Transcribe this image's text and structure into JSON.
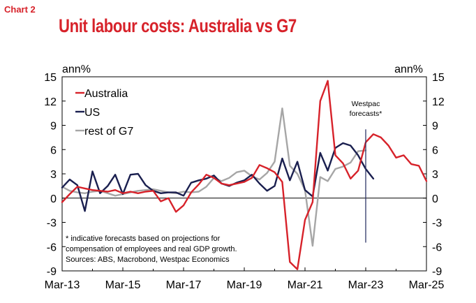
{
  "header": {
    "label": "Chart 2",
    "title": "Unit labour costs: Australia vs G7"
  },
  "colors": {
    "australia": "#d7222a",
    "us": "#1a1f4f",
    "rest_g7": "#a6a6a6",
    "forecast_line": "#2e3568"
  },
  "chart_data": {
    "type": "line",
    "title": "Unit labour costs: Australia vs G7",
    "ylabel_left": "ann%",
    "ylabel_right": "ann%",
    "ylim": [
      -9,
      15
    ],
    "yticks": [
      -9,
      -6,
      -3,
      0,
      3,
      6,
      9,
      12,
      15
    ],
    "xlim": [
      2013.0,
      2025.0
    ],
    "xticks": [
      {
        "label": "Mar-13",
        "x": 2013.0
      },
      {
        "label": "Mar-15",
        "x": 2015.0
      },
      {
        "label": "Mar-17",
        "x": 2017.0
      },
      {
        "label": "Mar-19",
        "x": 2019.0
      },
      {
        "label": "Mar-21",
        "x": 2021.0
      },
      {
        "label": "Mar-23",
        "x": 2023.0
      },
      {
        "label": "Mar-25",
        "x": 2025.0
      }
    ],
    "forecast_marker": {
      "x": 2023.0,
      "label_line1": "Westpac",
      "label_line2": "forecasts*",
      "y_from": -5.5,
      "y_to": 8.5
    },
    "legend": [
      "Australia",
      "US",
      "rest of G7"
    ],
    "footnote": [
      "* indicative forecasts based on projections for",
      "compensation of employees and real GDP growth.",
      "Sources: ABS, Macrobond, Westpac Economics"
    ],
    "series": [
      {
        "name": "Australia",
        "x": [
          2013.0,
          2013.25,
          2013.5,
          2013.75,
          2014.0,
          2014.25,
          2014.5,
          2014.75,
          2015.0,
          2015.25,
          2015.5,
          2015.75,
          2016.0,
          2016.25,
          2016.5,
          2016.75,
          2017.0,
          2017.25,
          2017.5,
          2017.75,
          2018.0,
          2018.25,
          2018.5,
          2018.75,
          2019.0,
          2019.25,
          2019.5,
          2019.75,
          2020.0,
          2020.25,
          2020.5,
          2020.75,
          2021.0,
          2021.25,
          2021.5,
          2021.75,
          2022.0,
          2022.25,
          2022.5,
          2022.75,
          2023.0,
          2023.25,
          2023.5,
          2023.75,
          2024.0,
          2024.25,
          2024.5,
          2024.75,
          2025.0
        ],
        "values": [
          -0.5,
          0.5,
          1.4,
          1.2,
          1.0,
          0.9,
          0.8,
          1.0,
          0.6,
          0.8,
          0.6,
          0.8,
          0.9,
          -0.4,
          0.0,
          -1.7,
          -0.9,
          0.7,
          1.7,
          2.9,
          2.5,
          1.8,
          1.6,
          1.8,
          2.0,
          2.5,
          4.1,
          3.7,
          3.2,
          2.0,
          -7.9,
          -8.8,
          -2.7,
          -0.5,
          12.0,
          14.5,
          5.3,
          4.3,
          2.4,
          3.4,
          6.9,
          7.9,
          7.5,
          6.5,
          5.0,
          5.3,
          4.2,
          4.0,
          2.1
        ]
      },
      {
        "name": "US",
        "x": [
          2013.0,
          2013.25,
          2013.5,
          2013.75,
          2014.0,
          2014.25,
          2014.5,
          2014.75,
          2015.0,
          2015.25,
          2015.5,
          2015.75,
          2016.0,
          2016.25,
          2016.5,
          2016.75,
          2017.0,
          2017.25,
          2017.5,
          2017.75,
          2018.0,
          2018.25,
          2018.5,
          2018.75,
          2019.0,
          2019.25,
          2019.5,
          2019.75,
          2020.0,
          2020.25,
          2020.5,
          2020.75,
          2021.0,
          2021.25,
          2021.5,
          2021.75,
          2022.0,
          2022.25,
          2022.5,
          2022.75,
          2023.0,
          2023.25
        ],
        "values": [
          1.3,
          2.3,
          1.6,
          -1.6,
          3.3,
          0.6,
          1.5,
          2.9,
          0.5,
          2.9,
          3.0,
          1.6,
          0.9,
          0.6,
          0.7,
          0.7,
          0.3,
          1.9,
          2.2,
          2.4,
          2.8,
          1.8,
          1.5,
          1.9,
          2.2,
          2.9,
          1.8,
          0.9,
          1.5,
          4.9,
          2.2,
          4.5,
          1.0,
          0.2,
          5.6,
          3.4,
          6.2,
          6.8,
          6.5,
          5.3,
          3.6,
          2.4
        ]
      },
      {
        "name": "rest of G7",
        "x": [
          2013.0,
          2013.25,
          2013.5,
          2013.75,
          2014.0,
          2014.25,
          2014.5,
          2014.75,
          2015.0,
          2015.25,
          2015.5,
          2015.75,
          2016.0,
          2016.25,
          2016.5,
          2016.75,
          2017.0,
          2017.25,
          2017.5,
          2017.75,
          2018.0,
          2018.25,
          2018.5,
          2018.75,
          2019.0,
          2019.25,
          2019.5,
          2019.75,
          2020.0,
          2020.25,
          2020.5,
          2020.75,
          2021.0,
          2021.25,
          2021.5,
          2021.75,
          2022.0,
          2022.25,
          2022.5,
          2022.75,
          2023.0
        ],
        "values": [
          1.4,
          0.9,
          0.7,
          0.6,
          0.8,
          0.9,
          0.6,
          0.3,
          0.5,
          0.7,
          0.9,
          1.0,
          1.1,
          0.9,
          0.7,
          0.6,
          0.8,
          0.7,
          0.8,
          1.4,
          2.5,
          2.1,
          2.5,
          3.2,
          3.4,
          2.7,
          2.3,
          3.1,
          4.5,
          11.1,
          4.0,
          3.0,
          1.0,
          -5.9,
          2.6,
          2.1,
          3.6,
          3.9,
          4.4,
          5.8,
          5.9
        ]
      }
    ]
  }
}
